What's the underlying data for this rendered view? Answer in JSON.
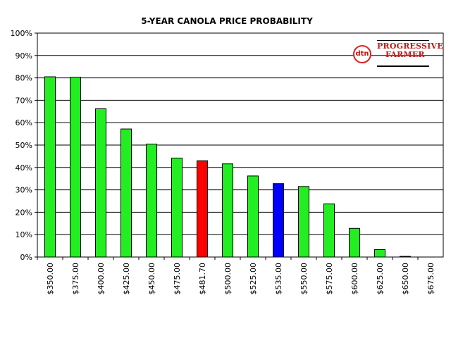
{
  "chart_data": {
    "type": "bar",
    "title": "5-YEAR CANOLA PRICE PROBABILITY",
    "xlabel": "",
    "ylabel": "",
    "ylim": [
      0,
      100
    ],
    "yticks": [
      "0%",
      "10%",
      "20%",
      "30%",
      "40%",
      "50%",
      "60%",
      "70%",
      "80%",
      "90%",
      "100%"
    ],
    "grid": true,
    "categories": [
      "$350.00",
      "$375.00",
      "$400.00",
      "$425.00",
      "$450.00",
      "$475.00",
      "$481.70",
      "$500.00",
      "$525.00",
      "$535.00",
      "$550.00",
      "$575.00",
      "$600.00",
      "$625.00",
      "$650.00",
      "$675.00"
    ],
    "values": [
      80.5,
      80.3,
      66.2,
      57.2,
      50.4,
      44.2,
      43.0,
      41.6,
      36.2,
      32.8,
      31.5,
      23.7,
      12.8,
      3.3,
      0.3,
      0.0
    ],
    "bar_colors": [
      "#22ee22",
      "#22ee22",
      "#22ee22",
      "#22ee22",
      "#22ee22",
      "#22ee22",
      "#ff0000",
      "#22ee22",
      "#22ee22",
      "#0000ff",
      "#22ee22",
      "#22ee22",
      "#22ee22",
      "#22ee22",
      "#22ee22",
      "#22ee22"
    ]
  },
  "logo": {
    "mark": "dtn",
    "line1": "PROGRESSIVE",
    "line2": "FARMER"
  }
}
